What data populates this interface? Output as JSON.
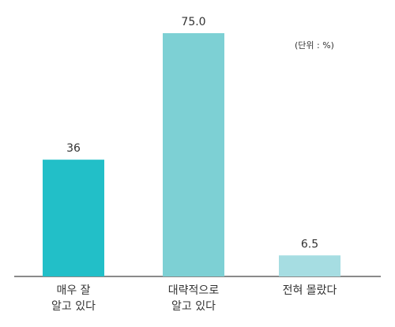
{
  "chart_data": {
    "type": "bar",
    "annotation": "(단위 : %)",
    "categories": [
      "매우 잘\n알고 있다",
      "대략적으로\n알고 있다",
      "전혀 몰랐다"
    ],
    "values": [
      36,
      75,
      6.5
    ],
    "value_labels": [
      "36",
      "75.0",
      "6.5"
    ],
    "colors": [
      "#22bfc8",
      "#7dd0d4",
      "#a6dde2"
    ]
  }
}
